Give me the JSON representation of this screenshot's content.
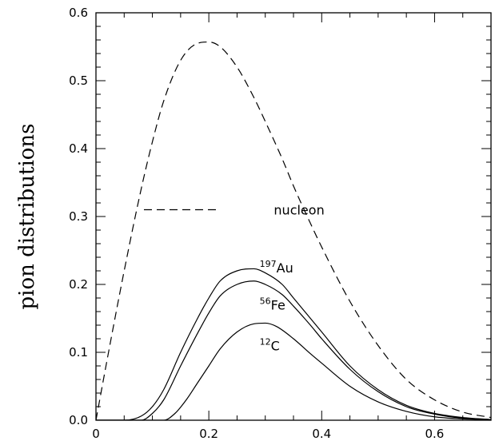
{
  "chart_data": {
    "type": "line",
    "title": "",
    "xlabel": "",
    "ylabel": "pion distributions",
    "xlim": [
      0,
      0.7
    ],
    "ylim": [
      0,
      0.6
    ],
    "x_ticks": [
      "0",
      "0.2",
      "0.4",
      "0.6"
    ],
    "y_ticks": [
      "0.0",
      "0.1",
      "0.2",
      "0.3",
      "0.4",
      "0.5",
      "0.6"
    ],
    "grid": false,
    "legend": {
      "placement": "middle-left",
      "entries": [
        {
          "series": "nucleon",
          "label": "nucleon",
          "style": "dashed"
        }
      ]
    },
    "series": [
      {
        "name": "nucleon",
        "style": "dashed",
        "x": [
          0,
          0.02,
          0.05,
          0.08,
          0.1,
          0.12,
          0.15,
          0.18,
          0.2,
          0.22,
          0.25,
          0.28,
          0.3,
          0.33,
          0.35,
          0.38,
          0.4,
          0.45,
          0.5,
          0.55,
          0.6,
          0.65,
          0.7
        ],
        "y": [
          0,
          0.09,
          0.22,
          0.34,
          0.41,
          0.47,
          0.53,
          0.555,
          0.557,
          0.55,
          0.52,
          0.475,
          0.44,
          0.385,
          0.345,
          0.29,
          0.255,
          0.175,
          0.11,
          0.06,
          0.03,
          0.012,
          0.004
        ]
      },
      {
        "name": "197Au",
        "style": "solid",
        "x": [
          0,
          0.05,
          0.08,
          0.1,
          0.12,
          0.15,
          0.18,
          0.2,
          0.22,
          0.25,
          0.28,
          0.3,
          0.33,
          0.35,
          0.38,
          0.4,
          0.45,
          0.5,
          0.55,
          0.6,
          0.65,
          0.7
        ],
        "y": [
          0,
          0,
          0.006,
          0.02,
          0.045,
          0.1,
          0.15,
          0.18,
          0.205,
          0.22,
          0.223,
          0.217,
          0.2,
          0.18,
          0.15,
          0.13,
          0.08,
          0.045,
          0.022,
          0.01,
          0.004,
          0.001
        ]
      },
      {
        "name": "56Fe",
        "style": "solid",
        "x": [
          0,
          0.08,
          0.1,
          0.12,
          0.15,
          0.18,
          0.2,
          0.22,
          0.25,
          0.28,
          0.3,
          0.33,
          0.35,
          0.38,
          0.4,
          0.45,
          0.5,
          0.55,
          0.6,
          0.65,
          0.7
        ],
        "y": [
          0,
          0,
          0.01,
          0.03,
          0.08,
          0.128,
          0.158,
          0.183,
          0.2,
          0.205,
          0.2,
          0.185,
          0.168,
          0.14,
          0.12,
          0.075,
          0.042,
          0.02,
          0.009,
          0.003,
          0.001
        ]
      },
      {
        "name": "12C",
        "style": "solid",
        "x": [
          0,
          0.12,
          0.14,
          0.16,
          0.18,
          0.2,
          0.22,
          0.25,
          0.28,
          0.3,
          0.32,
          0.35,
          0.38,
          0.4,
          0.45,
          0.5,
          0.55,
          0.6,
          0.65,
          0.7
        ],
        "y": [
          0,
          0,
          0.01,
          0.03,
          0.055,
          0.08,
          0.105,
          0.13,
          0.142,
          0.143,
          0.138,
          0.12,
          0.098,
          0.084,
          0.05,
          0.027,
          0.013,
          0.005,
          0.002,
          0.0005
        ]
      }
    ],
    "annotations": [
      {
        "id": "nucleon",
        "sup": "",
        "text": "nucleon",
        "x": 0.36,
        "y": 0.31
      },
      {
        "id": "au",
        "sup": "197",
        "text": "Au",
        "x": 0.29,
        "y": 0.225
      },
      {
        "id": "fe",
        "sup": "56",
        "text": "Fe",
        "x": 0.29,
        "y": 0.17
      },
      {
        "id": "c",
        "sup": "12",
        "text": "C",
        "x": 0.29,
        "y": 0.11
      }
    ]
  }
}
